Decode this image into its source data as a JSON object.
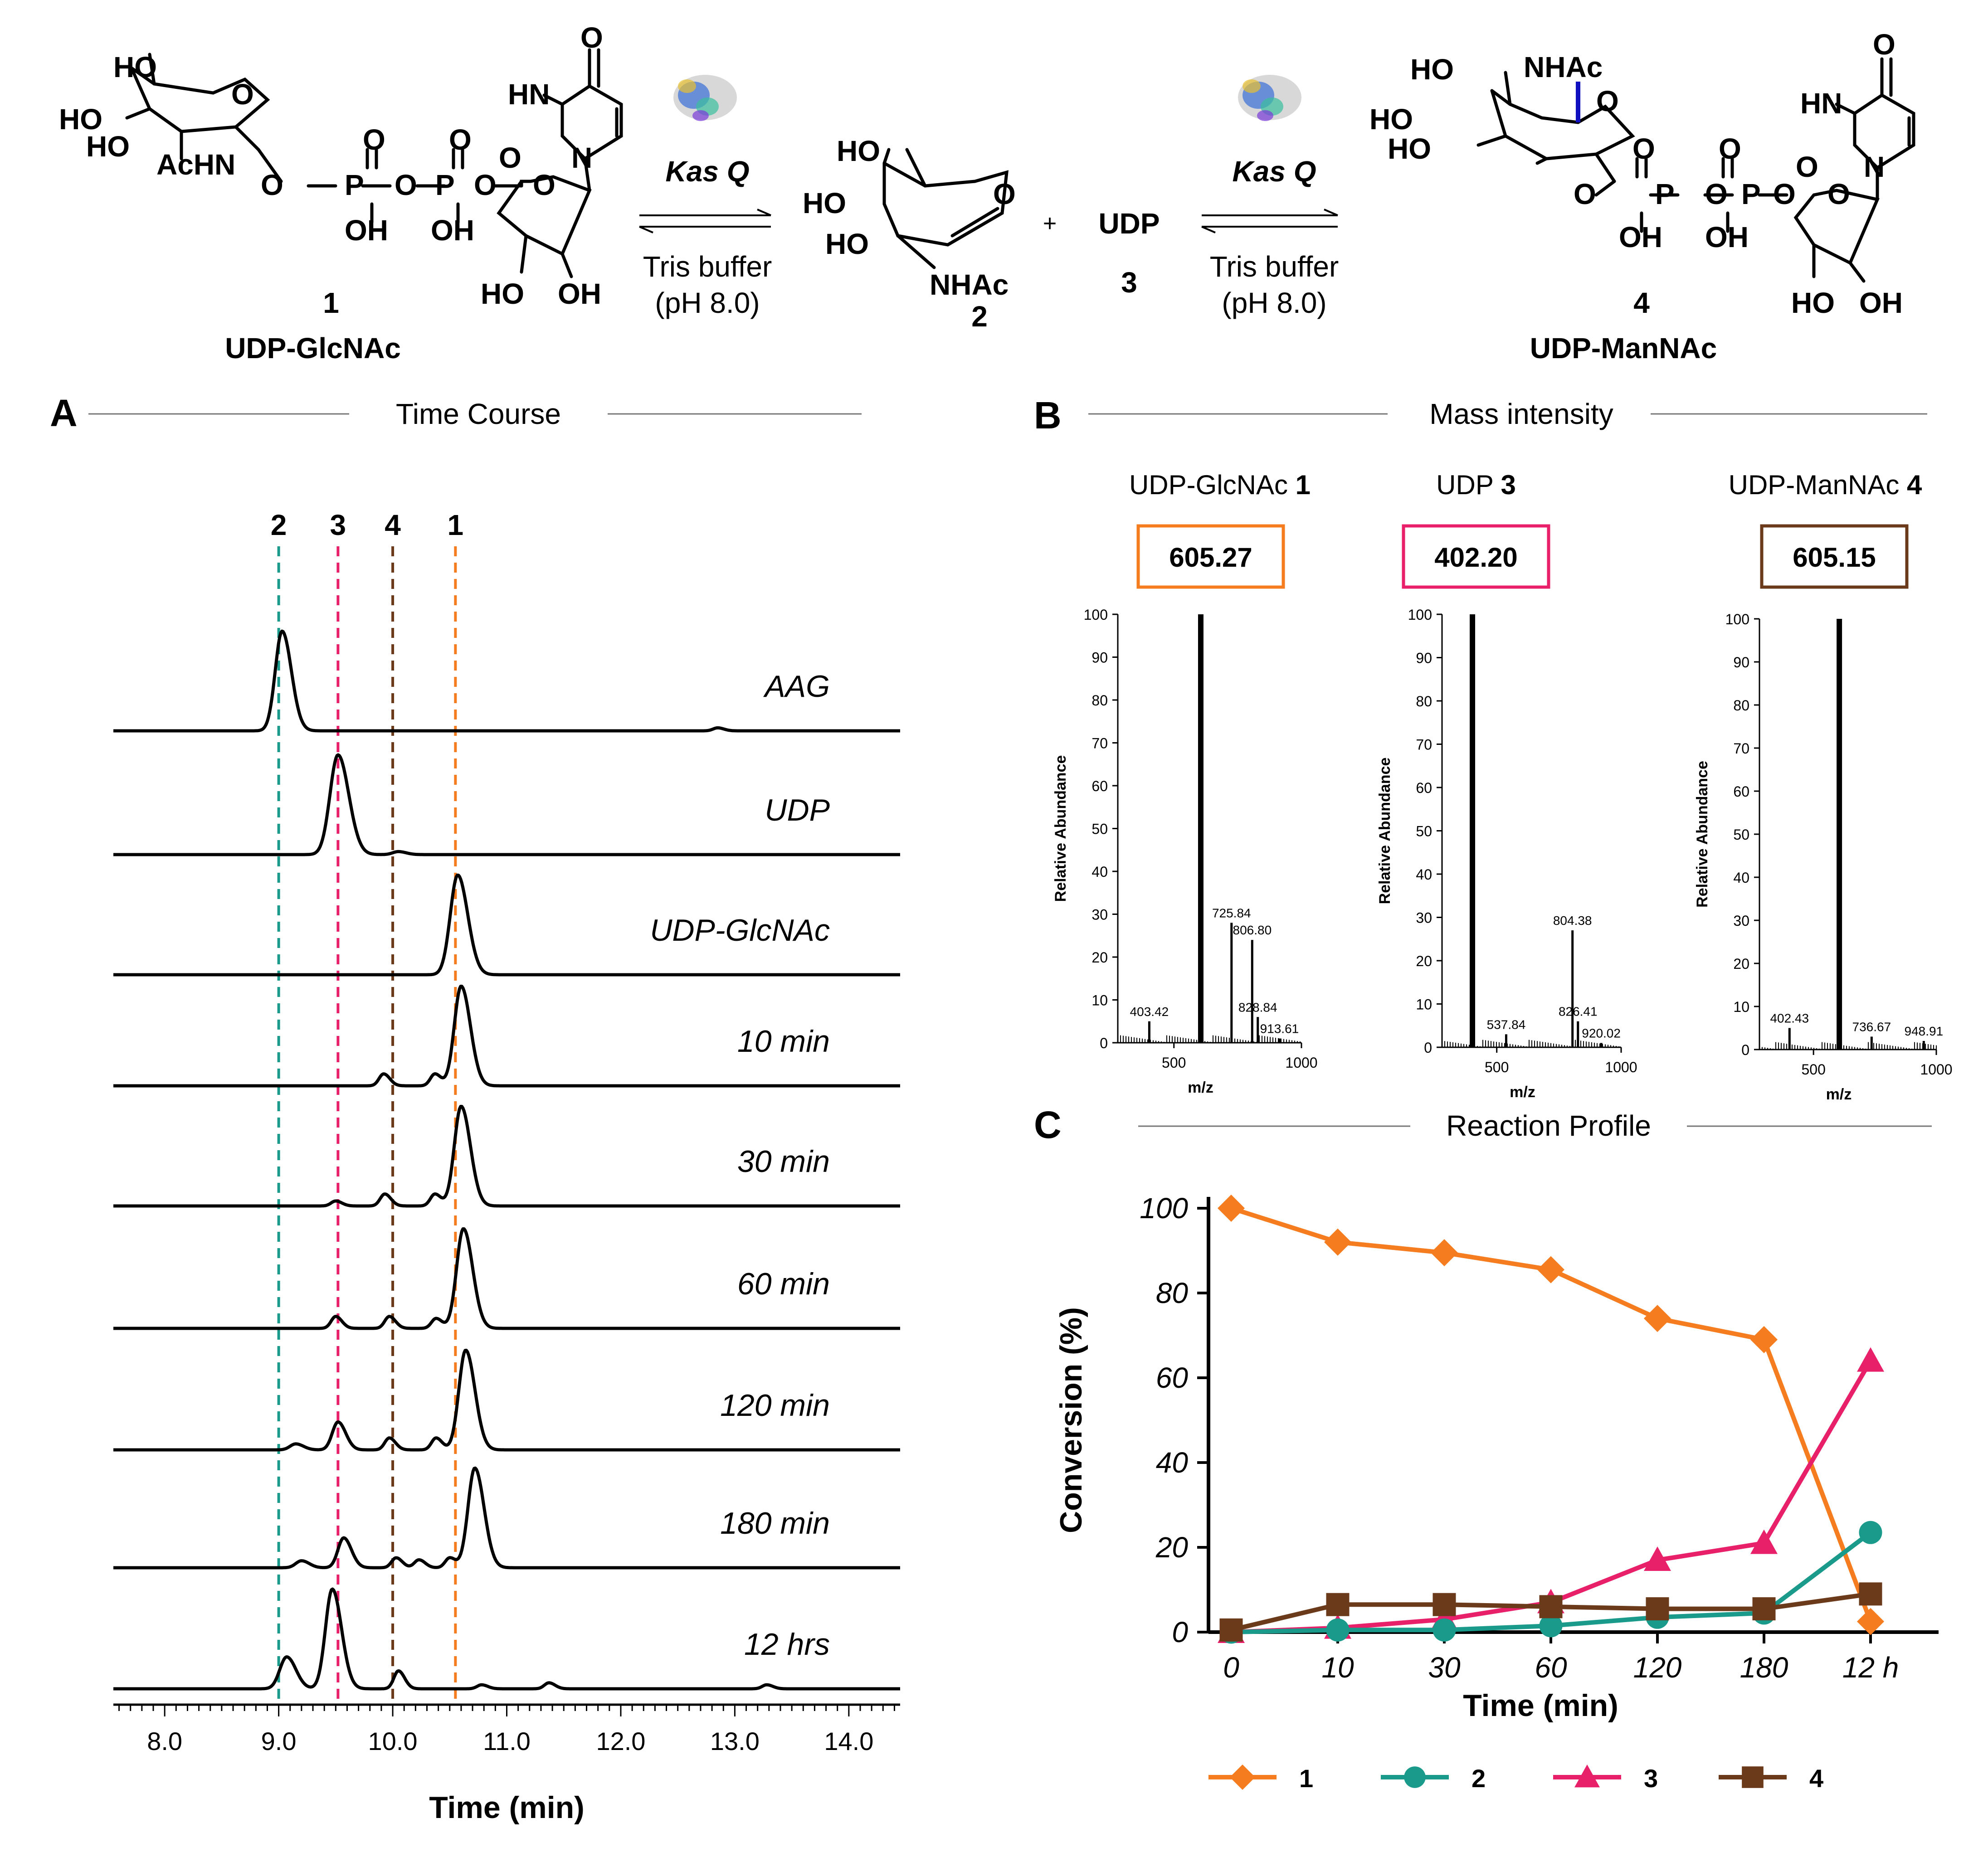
{
  "scheme": {
    "compound1": {
      "number": "1",
      "name": "UDP-GlcNAc",
      "labels": {
        "ho1": "HO",
        "ho2": "HO",
        "ho3": "HO",
        "achn": "AcHN",
        "o": "O",
        "p1": "P",
        "p2": "P",
        "oh1": "OH",
        "oh2": "OH",
        "o_a": "O",
        "o_b": "O",
        "o_c": "O",
        "o_d": "O",
        "o_e": "O",
        "o_f": "O"
      }
    },
    "compound2": {
      "number": "2",
      "labels": {
        "ho1": "HO",
        "ho2": "HO",
        "ho3": "HO",
        "nhac": "NHAc",
        "o": "O"
      }
    },
    "compound3": {
      "number": "3",
      "name": "UDP"
    },
    "compound4": {
      "number": "4",
      "name": "UDP-ManNAc",
      "labels": {
        "ho1": "HO",
        "ho2": "HO",
        "ho3": "HO",
        "nhac": "NHAc",
        "o": "O",
        "p1": "P",
        "p2": "P",
        "oh1": "OH",
        "oh2": "OH",
        "o_a": "O",
        "o_b": "O",
        "o_c": "O",
        "o_d": "O",
        "o_e": "O",
        "o_f": "O"
      }
    },
    "uridine": {
      "hn": "HN",
      "n": "N",
      "o_top": "O",
      "o_left": "O",
      "o_ring": "O",
      "ho": "HO",
      "oh": "OH"
    },
    "enzyme": "Kas Q",
    "buffer_line1": "Tris buffer",
    "buffer_line2": "(pH 8.0)",
    "plus": "+"
  },
  "panelA": {
    "letter": "A",
    "title": "Time Course"
  },
  "panelB": {
    "letter": "B",
    "title": "Mass intensity"
  },
  "panelC": {
    "letter": "C",
    "title": "Reaction Profile"
  },
  "chart_data": [
    {
      "type": "line",
      "title": "Time Course",
      "xlabel": "Time (min)",
      "xlim": [
        7.55,
        14.45
      ],
      "xticks": [
        "8.0",
        "9.0",
        "10.0",
        "11.0",
        "12.0",
        "13.0",
        "14.0"
      ],
      "marker_lines": [
        {
          "label": "2",
          "x": 9.0,
          "color": "#1a9a8a"
        },
        {
          "label": "3",
          "x": 9.52,
          "color": "#e8206a"
        },
        {
          "label": "4",
          "x": 10.0,
          "color": "#6b3a1a"
        },
        {
          "label": "1",
          "x": 10.55,
          "color": "#f57c1f"
        }
      ],
      "traces": [
        {
          "name": "AAG",
          "peaks": [
            [
              9.03,
              1.0,
              0.06
            ],
            [
              12.85,
              0.03,
              0.04
            ]
          ]
        },
        {
          "name": "UDP",
          "peaks": [
            [
              9.52,
              1.0,
              0.07
            ],
            [
              10.05,
              0.03,
              0.05
            ]
          ]
        },
        {
          "name": "UDP-GlcNAc",
          "peaks": [
            [
              10.57,
              1.0,
              0.065
            ]
          ]
        },
        {
          "name": "10 min",
          "peaks": [
            [
              9.92,
              0.12,
              0.04
            ],
            [
              10.37,
              0.12,
              0.04
            ],
            [
              10.6,
              1.0,
              0.06
            ]
          ]
        },
        {
          "name": "30 min",
          "peaks": [
            [
              9.5,
              0.05,
              0.04
            ],
            [
              9.93,
              0.12,
              0.04
            ],
            [
              10.37,
              0.12,
              0.04
            ],
            [
              10.6,
              1.0,
              0.06
            ]
          ]
        },
        {
          "name": "60 min",
          "peaks": [
            [
              9.5,
              0.12,
              0.04
            ],
            [
              9.97,
              0.12,
              0.04
            ],
            [
              10.38,
              0.1,
              0.04
            ],
            [
              10.62,
              1.0,
              0.06
            ]
          ]
        },
        {
          "name": "120 min",
          "peaks": [
            [
              9.15,
              0.06,
              0.05
            ],
            [
              9.52,
              0.28,
              0.05
            ],
            [
              9.97,
              0.12,
              0.04
            ],
            [
              10.38,
              0.12,
              0.04
            ],
            [
              10.64,
              1.0,
              0.06
            ]
          ]
        },
        {
          "name": "180 min",
          "peaks": [
            [
              9.2,
              0.07,
              0.05
            ],
            [
              9.57,
              0.3,
              0.05
            ],
            [
              10.03,
              0.1,
              0.04
            ],
            [
              10.23,
              0.08,
              0.04
            ],
            [
              10.5,
              0.1,
              0.04
            ],
            [
              10.72,
              1.0,
              0.06
            ]
          ]
        },
        {
          "name": "12 hrs",
          "peaks": [
            [
              9.07,
              0.32,
              0.06
            ],
            [
              9.47,
              1.0,
              0.06
            ],
            [
              10.05,
              0.18,
              0.04
            ],
            [
              10.78,
              0.04,
              0.04
            ],
            [
              11.37,
              0.06,
              0.04
            ],
            [
              13.28,
              0.04,
              0.04
            ]
          ]
        }
      ]
    },
    {
      "type": "bar",
      "title": "UDP-GlcNAc 1",
      "title_text": "UDP-GlcNAc ",
      "title_bold": "1",
      "boxed_value": "605.27",
      "box_color": "#f57c1f",
      "xlabel": "m/z",
      "ylabel": "Relative Abundance",
      "xlim": [
        280,
        1000
      ],
      "ylim": [
        0,
        100
      ],
      "xticks": [
        "500",
        "1000"
      ],
      "yticks": [
        "0",
        "10",
        "20",
        "30",
        "40",
        "50",
        "60",
        "70",
        "80",
        "90",
        "100"
      ],
      "peaks": [
        [
          403.42,
          5
        ],
        [
          605.27,
          100
        ],
        [
          725.84,
          28
        ],
        [
          806.8,
          24
        ],
        [
          828.84,
          6
        ],
        [
          913.61,
          1
        ]
      ],
      "peak_labels": [
        {
          "mz": 403.42,
          "y": 5,
          "text": "403.42"
        },
        {
          "mz": 725.84,
          "y": 28,
          "text": "725.84"
        },
        {
          "mz": 806.8,
          "y": 24,
          "text": "806.80"
        },
        {
          "mz": 828.84,
          "y": 6,
          "text": "828.84"
        },
        {
          "mz": 913.61,
          "y": 1,
          "text": "913.61"
        }
      ]
    },
    {
      "type": "bar",
      "title": "UDP 3",
      "title_text": "UDP ",
      "title_bold": "3",
      "boxed_value": "402.20",
      "box_color": "#e8206a",
      "xlabel": "m/z",
      "ylabel": "Relative Abundance",
      "xlim": [
        280,
        1000
      ],
      "ylim": [
        0,
        100
      ],
      "xticks": [
        "500",
        "1000"
      ],
      "yticks": [
        "0",
        "10",
        "20",
        "30",
        "40",
        "50",
        "60",
        "70",
        "80",
        "90",
        "100"
      ],
      "peaks": [
        [
          402.2,
          100
        ],
        [
          537.84,
          3
        ],
        [
          804.38,
          27
        ],
        [
          826.41,
          6
        ],
        [
          920.02,
          1
        ]
      ],
      "peak_labels": [
        {
          "mz": 537.84,
          "y": 3,
          "text": "537.84"
        },
        {
          "mz": 804.38,
          "y": 27,
          "text": "804.38"
        },
        {
          "mz": 826.41,
          "y": 6,
          "text": "826.41"
        },
        {
          "mz": 920.02,
          "y": 1,
          "text": "920.02"
        }
      ]
    },
    {
      "type": "bar",
      "title": "UDP-ManNAc 4",
      "title_text": "UDP-ManNAc ",
      "title_bold": "4",
      "boxed_value": "605.15",
      "box_color": "#6b3a1a",
      "xlabel": "m/z",
      "ylabel": "Relative Abundance",
      "xlim": [
        280,
        1000
      ],
      "ylim": [
        0,
        100
      ],
      "xticks": [
        "500",
        "1000"
      ],
      "yticks": [
        "0",
        "10",
        "20",
        "30",
        "40",
        "50",
        "60",
        "70",
        "80",
        "90",
        "100"
      ],
      "peaks": [
        [
          402.43,
          5
        ],
        [
          605.15,
          100
        ],
        [
          736.67,
          3
        ],
        [
          948.91,
          2
        ]
      ],
      "peak_labels": [
        {
          "mz": 402.43,
          "y": 5,
          "text": "402.43"
        },
        {
          "mz": 736.67,
          "y": 3,
          "text": "736.67"
        },
        {
          "mz": 948.91,
          "y": 2,
          "text": "948.91"
        }
      ]
    },
    {
      "type": "line",
      "title": "Reaction Profile",
      "xlabel": "Time (min)",
      "ylabel": "Conversion (%)",
      "categories": [
        "0",
        "10",
        "30",
        "60",
        "120",
        "180",
        "12 h"
      ],
      "ylim": [
        0,
        100
      ],
      "yticks": [
        "0",
        "20",
        "40",
        "60",
        "80",
        "100"
      ],
      "series": [
        {
          "name": "1",
          "color": "#f57c1f",
          "marker": "diamond",
          "values": [
            100,
            92,
            89.5,
            85.5,
            74,
            69,
            2.5
          ]
        },
        {
          "name": "2",
          "color": "#1a9a8a",
          "marker": "circle",
          "values": [
            0,
            0.5,
            0.5,
            1.5,
            3.5,
            4.5,
            23.5
          ]
        },
        {
          "name": "3",
          "color": "#e8206a",
          "marker": "triangle",
          "values": [
            0,
            1,
            3,
            7,
            17,
            21,
            64
          ]
        },
        {
          "name": "4",
          "color": "#6b3a1a",
          "marker": "square",
          "values": [
            0.5,
            6.5,
            6.5,
            6,
            5.5,
            5.5,
            9
          ]
        }
      ],
      "legend": "bottom"
    }
  ]
}
